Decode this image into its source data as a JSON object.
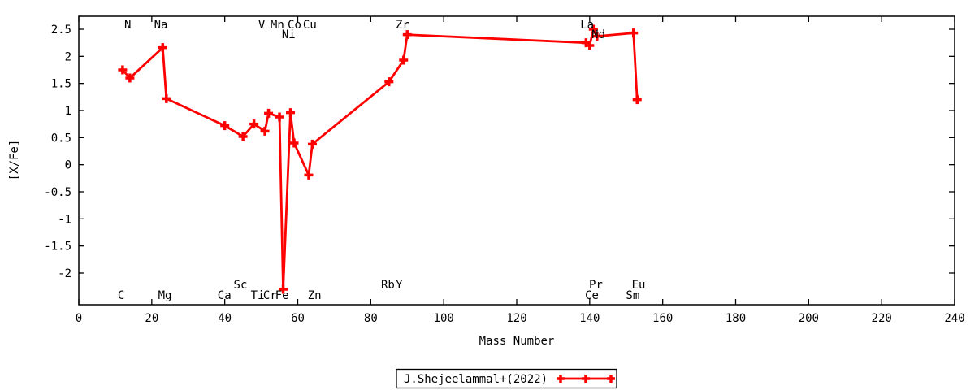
{
  "chart_data": {
    "type": "line",
    "title": "",
    "xlabel": "Mass Number",
    "ylabel": "[X/Fe]",
    "xlim": [
      0,
      240
    ],
    "ylim_ticks": [
      -2,
      2.5
    ],
    "ylim_render": [
      -2.585,
      2.74
    ],
    "grid": false,
    "legend_position": "below-plot-center",
    "xticks": {
      "values": [
        0,
        20,
        40,
        60,
        80,
        100,
        120,
        140,
        160,
        180,
        200,
        220,
        240
      ],
      "labels": [
        "0",
        "20",
        "40",
        "60",
        "80",
        "100",
        "120",
        "140",
        "160",
        "180",
        "200",
        "220",
        "240"
      ]
    },
    "yticks": {
      "values": [
        -2,
        -1.5,
        -1,
        -0.5,
        0,
        0.5,
        1,
        1.5,
        2,
        2.5
      ],
      "labels": [
        "-2",
        "-1.5",
        "-1",
        "-0.5",
        "0",
        "0.5",
        "1",
        "1.5",
        "2",
        "2.5"
      ]
    },
    "series": [
      {
        "name": "J.Shejeelammal+(2022)",
        "color": "#ff0000",
        "marker": "plus",
        "points": [
          {
            "element": "C",
            "mass": 12,
            "xfe": 1.75
          },
          {
            "element": "N",
            "mass": 14,
            "xfe": 1.6
          },
          {
            "element": "Na",
            "mass": 23,
            "xfe": 2.16
          },
          {
            "element": "Mg",
            "mass": 24,
            "xfe": 1.22
          },
          {
            "element": "Ca",
            "mass": 40,
            "xfe": 0.72
          },
          {
            "element": "Sc",
            "mass": 45,
            "xfe": 0.52
          },
          {
            "element": "Ti",
            "mass": 48,
            "xfe": 0.75
          },
          {
            "element": "V",
            "mass": 51,
            "xfe": 0.62
          },
          {
            "element": "Cr",
            "mass": 52,
            "xfe": 0.95
          },
          {
            "element": "Mn",
            "mass": 55,
            "xfe": 0.88
          },
          {
            "element": "Fe",
            "mass": 56,
            "xfe": -2.3
          },
          {
            "element": "Co",
            "mass": 58,
            "xfe": 0.96
          },
          {
            "element": "Ni",
            "mass": 59,
            "xfe": 0.4
          },
          {
            "element": "Cu",
            "mass": 63,
            "xfe": -0.19
          },
          {
            "element": "Zn",
            "mass": 64,
            "xfe": 0.38
          },
          {
            "element": "Rb",
            "mass": 85,
            "xfe": 1.53
          },
          {
            "element": "Y",
            "mass": 89,
            "xfe": 1.93
          },
          {
            "element": "Zr",
            "mass": 90,
            "xfe": 2.4
          },
          {
            "element": "La",
            "mass": 139,
            "xfe": 2.25
          },
          {
            "element": "Ce",
            "mass": 140,
            "xfe": 2.2
          },
          {
            "element": "Pr",
            "mass": 141,
            "xfe": 2.5
          },
          {
            "element": "Nd",
            "mass": 142,
            "xfe": 2.37
          },
          {
            "element": "Sm",
            "mass": 152,
            "xfe": 2.43
          },
          {
            "element": "Eu",
            "mass": 153,
            "xfe": 1.2
          }
        ]
      }
    ],
    "element_labels": [
      {
        "text": "C",
        "x": 11.6,
        "row": "bottom"
      },
      {
        "text": "N",
        "x": 13.4,
        "row": "top"
      },
      {
        "text": "Na",
        "x": 22.5,
        "row": "top"
      },
      {
        "text": "Mg",
        "x": 23.6,
        "row": "bottom"
      },
      {
        "text": "Ca",
        "x": 39.9,
        "row": "bottom"
      },
      {
        "text": "Sc",
        "x": 44.3,
        "row": "bottom_raised"
      },
      {
        "text": "Ti",
        "x": 49.0,
        "row": "bottom"
      },
      {
        "text": "V",
        "x": 50.1,
        "row": "top"
      },
      {
        "text": "Cr",
        "x": 52.4,
        "row": "bottom"
      },
      {
        "text": "Mn",
        "x": 54.4,
        "row": "top"
      },
      {
        "text": "Fe",
        "x": 55.7,
        "row": "bottom"
      },
      {
        "text": "Ni",
        "x": 57.5,
        "row": "top2"
      },
      {
        "text": "Co",
        "x": 59.1,
        "row": "top"
      },
      {
        "text": "Cu",
        "x": 63.3,
        "row": "top"
      },
      {
        "text": "Zn",
        "x": 64.6,
        "row": "bottom"
      },
      {
        "text": "Rb",
        "x": 84.7,
        "row": "bottom_raised"
      },
      {
        "text": "Y",
        "x": 87.8,
        "row": "bottom_raised"
      },
      {
        "text": "Zr",
        "x": 88.7,
        "row": "top"
      },
      {
        "text": "La",
        "x": 139.3,
        "row": "top"
      },
      {
        "text": "Ce",
        "x": 140.6,
        "row": "bottom"
      },
      {
        "text": "Pr",
        "x": 141.7,
        "row": "bottom_raised"
      },
      {
        "text": "Nd",
        "x": 142.4,
        "row": "top2"
      },
      {
        "text": "Sm",
        "x": 151.8,
        "row": "bottom"
      },
      {
        "text": "Eu",
        "x": 153.4,
        "row": "bottom_raised"
      }
    ]
  },
  "colors": {
    "series": "#ff0000",
    "axis": "#000000",
    "background": "#ffffff"
  }
}
